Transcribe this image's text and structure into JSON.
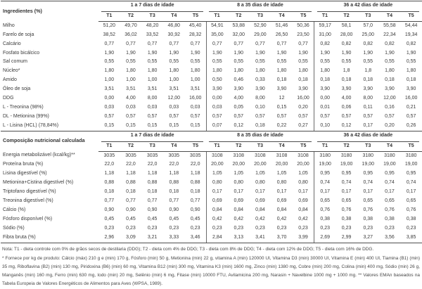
{
  "table1": {
    "label_header": "Ingredientes (%)",
    "groups": [
      "1 a 7 dias de idade",
      "8 a 35 dias de idade",
      "36 a 42 dias de idade"
    ],
    "subcols": [
      "T1",
      "T2",
      "T3",
      "T4",
      "T5"
    ],
    "rows": [
      {
        "label": "Milho",
        "values": [
          "51,20",
          "49,70",
          "48,20",
          "46,80",
          "45,40",
          "54,91",
          "53,88",
          "52,90",
          "51,46",
          "50,36",
          "59,17",
          "58,1",
          "57,0",
          "55,58",
          "54,44"
        ]
      },
      {
        "label": "Farelo de soja",
        "values": [
          "38,52",
          "36,02",
          "33,52",
          "30,92",
          "28,32",
          "35,00",
          "32,00",
          "29,00",
          "26,50",
          "23,50",
          "31,00",
          "28,00",
          "25,00",
          "22,34",
          "19,34"
        ]
      },
      {
        "label": "Calcário",
        "values": [
          "0,77",
          "0,77",
          "0,77",
          "0,77",
          "0,77",
          "0,77",
          "0,77",
          "0,77",
          "0,77",
          "0,77",
          "0,82",
          "0,82",
          "0,82",
          "0,82",
          "0,82"
        ]
      },
      {
        "label": "Fosfato bicálcico",
        "values": [
          "1,90",
          "1,90",
          "1,90",
          "1,90",
          "1,90",
          "1,90",
          "1,90",
          "1,90",
          "1,90",
          "1,90",
          "1,90",
          "1,90",
          "1,90",
          "1,90",
          "1,90"
        ]
      },
      {
        "label": "Sal comum",
        "values": [
          "0,55",
          "0,55",
          "0,55",
          "0,55",
          "0,55",
          "0,55",
          "0,55",
          "0,55",
          "0,55",
          "0,55",
          "0,55",
          "0,55",
          "0,55",
          "0,55",
          "0,55"
        ]
      },
      {
        "label": "Núcleo*",
        "values": [
          "1,80",
          "1,80",
          "1,80",
          "1,80",
          "1,80",
          "1,80",
          "1,80",
          "1,80",
          "1,80",
          "1,80",
          "1,80",
          "1,8",
          "1,8",
          "1,80",
          "1,80"
        ]
      },
      {
        "label": "Amido",
        "values": [
          "1,00",
          "1,00",
          "1,00",
          "1,00",
          "1,00",
          "0,50",
          "0,46",
          "0,33",
          "0,18",
          "0,18",
          "0,18",
          "0,18",
          "0,18",
          "0,18",
          "0,18"
        ]
      },
      {
        "label": "Óleo de soja",
        "values": [
          "3,51",
          "3,51",
          "3,51",
          "3,51",
          "3,51",
          "3,90",
          "3,90",
          "3,90",
          "3,90",
          "3,90",
          "3,90",
          "3,90",
          "3,90",
          "3,90",
          "3,90"
        ]
      },
      {
        "label": "DDG",
        "values": [
          "0,00",
          "4,00",
          "8,00",
          "12,00",
          "16,00",
          "0,00",
          "4,00",
          "8,00",
          "12",
          "16,00",
          "0,00",
          "4,00",
          "8,00",
          "12,00",
          "16,00"
        ]
      },
      {
        "label": "L - Treonina (98%)",
        "values": [
          "0,03",
          "0,03",
          "0,03",
          "0,03",
          "0,03",
          "0,03",
          "0,05",
          "0,10",
          "0,15",
          "0,20",
          "0,01",
          "0,06",
          "0,11",
          "0,16",
          "0,21"
        ]
      },
      {
        "label": "DL - Metionina (99%)",
        "values": [
          "0,57",
          "0,57",
          "0,57",
          "0,57",
          "0,57",
          "0,57",
          "0,57",
          "0,57",
          "0,57",
          "0,57",
          "0,57",
          "0,57",
          "0,57",
          "0,57",
          "0,57"
        ]
      },
      {
        "label": "L - Lisina (HCL) (78,84%)",
        "values": [
          "0,15",
          "0,15",
          "0,15",
          "0,15",
          "0,15",
          "0,07",
          "0,12",
          "0,18",
          "0,22",
          "0,27",
          "0,10",
          "0,12",
          "0,17",
          "0,20",
          "0,26"
        ]
      }
    ]
  },
  "table2": {
    "label_header": "Composição nutricional calculada",
    "groups": [
      "1 a 7 dias de idade",
      "8 a 35 dias de idade",
      "36 a 42 dias de idade"
    ],
    "subcols": [
      "T1",
      "T2",
      "T3",
      "T4",
      "T5"
    ],
    "rows": [
      {
        "label": "Energia metabolizável (kcal/kg)**",
        "values": [
          "3035",
          "3035",
          "3035",
          "3035",
          "3035",
          "3108",
          "3108",
          "3108",
          "3108",
          "3108",
          "3180",
          "3180",
          "3180",
          "3180",
          "3180"
        ]
      },
      {
        "label": "Proteína bruta (%)",
        "values": [
          "22,0",
          "22,0",
          "22,0",
          "22,0",
          "22,0",
          "20,00",
          "20,00",
          "20,00",
          "20,00",
          "20,00",
          "19,00",
          "19,00",
          "19,00",
          "19,00",
          "19,00"
        ]
      },
      {
        "label": "Lisina digestível (%)",
        "values": [
          "1,18",
          "1,18",
          "1,18",
          "1,18",
          "1,18",
          "1,05",
          "1,05",
          "1,05",
          "1,05",
          "1,05",
          "0,95",
          "0,95",
          "0,95",
          "0,95",
          "0,95"
        ]
      },
      {
        "label": "Metionina+Cistina digestível (%)",
        "values": [
          "0,88",
          "0,88",
          "0,88",
          "0,88",
          "0,88",
          "0,80",
          "0,80",
          "0,80",
          "0,80",
          "0,80",
          "0,74",
          "0,74",
          "0,74",
          "0,74",
          "0,74"
        ]
      },
      {
        "label": "Triptofano digestível (%)",
        "values": [
          "0,18",
          "0,18",
          "0,18",
          "0,18",
          "0,18",
          "0,17",
          "0,17",
          "0,17",
          "0,17",
          "0,17",
          "0,17",
          "0,17",
          "0,17",
          "0,17",
          "0,17"
        ]
      },
      {
        "label": "Treonina digestível (%)",
        "values": [
          "0,77",
          "0,77",
          "0,77",
          "0,77",
          "0,77",
          "0,69",
          "0,69",
          "0,69",
          "0,69",
          "0,69",
          "0,65",
          "0,65",
          "0,65",
          "0,65",
          "0,65"
        ]
      },
      {
        "label": "Cálcio (%)",
        "values": [
          "0,90",
          "0,90",
          "0,90",
          "0,90",
          "0,90",
          "0,84",
          "0,84",
          "0,84",
          "0,84",
          "0,84",
          "0,76",
          "0,76",
          "0,76",
          "0,76",
          "0,76"
        ]
      },
      {
        "label": "Fósforo disponível (%)",
        "values": [
          "0,45",
          "0,45",
          "0,45",
          "0,45",
          "0,45",
          "0,42",
          "0,42",
          "0,42",
          "0,42",
          "0,42",
          "0,38",
          "0,38",
          "0,38",
          "0,38",
          "0,38"
        ]
      },
      {
        "label": "Sódio (%)",
        "values": [
          "0,23",
          "0,23",
          "0,23",
          "0,23",
          "0,23",
          "0,23",
          "0,23",
          "0,23",
          "0,23",
          "0,23",
          "0,23",
          "0,23",
          "0,23",
          "0,23",
          "0,23"
        ]
      },
      {
        "label": "Fibra bruta (%)",
        "values": [
          "2,96",
          "3,09",
          "3,21",
          "3,33",
          "3,46",
          "2,84",
          "3,13",
          "3,41",
          "3,70",
          "3,99",
          "2,69",
          "2,99",
          "3,27",
          "3,56",
          "3,85"
        ]
      }
    ]
  },
  "notes": {
    "note1": "Nota: T1 - dieta controle com 0% de grãos secos de destilaria (DDG); T2 - dieta com 4% de DDG; T3 - dieta com 8% de DDG; T4 - dieta com 12% de DDG; T5 - dieta com 16% de DDG.",
    "note2": "* Fornece por kg de produto: Cálcio (máx) 210 g e (min) 170 g, Fósforo (min) 50 g, Metionina (min) 22 g, vitamina A (min) 120000 UI, Vitamina D3 (min) 30000 UI, Vitamina E (min) 400 UI, Tiamina (B1) (min) 35 mg, Riboflavina (B2) (min) 130 mg, Piridoxina (B6) (min) 60 mg, Vitamina B12 (min) 300 mg, Vitamina K3 (min) 1600 mg, Zinco (min) 1380 mg, Cobre (min) 200 mg, Colina (min) 400 mg, Sódio (min) 26 g, Manganês (min) 160 mg, Ferro (min) 630 mg, Iodo (min) 20 mg, Selênio (min) 6 mg, Fitase (min) 10000 FTU, Avilamicina 200 mg, Narasin + Navelbine 1000 mg + 1000 mg. ** Valores EMAn baseados na Tabela Europeia de Valores Energéticos de Alimentos para Aves (WPSA, 1989)."
  }
}
